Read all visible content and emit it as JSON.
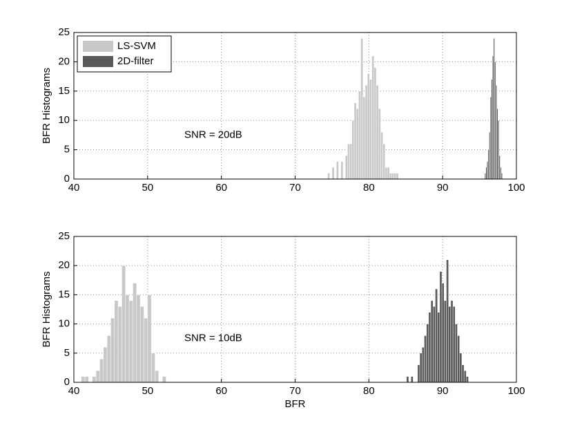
{
  "chart_data": [
    {
      "type": "histogram",
      "ylabel": "BFR Histograms",
      "annotation": "SNR = 20dB",
      "xlim": [
        40,
        100
      ],
      "xticks": [
        40,
        50,
        60,
        70,
        80,
        90,
        100
      ],
      "ylim": [
        0,
        25
      ],
      "yticks": [
        0,
        5,
        10,
        15,
        20,
        25
      ],
      "grid": true,
      "legend": "upper left",
      "series": [
        {
          "name": "LS-SVM",
          "color": "#c8c8c8",
          "bins": [
            74.4,
            74.7,
            75.0,
            75.3,
            75.6,
            75.9,
            76.2,
            76.5,
            76.8,
            77.1,
            77.4,
            77.7,
            78.0,
            78.3,
            78.6,
            78.9,
            79.2,
            79.5,
            79.8,
            80.1,
            80.4,
            80.7,
            81.0,
            81.3,
            81.6,
            81.9,
            82.2,
            82.5,
            82.8,
            83.1,
            83.4,
            83.7,
            84.0
          ],
          "values": [
            1,
            0,
            2,
            0,
            3,
            0,
            3,
            0,
            4,
            6,
            6,
            10,
            13,
            12,
            15,
            24,
            14,
            16,
            18,
            17,
            21,
            19,
            16,
            12,
            8,
            6,
            2,
            2,
            1,
            1,
            1,
            1
          ]
        },
        {
          "name": "2D-filter",
          "color": "#595959",
          "bins": [
            95.7,
            95.85,
            96.0,
            96.15,
            96.3,
            96.45,
            96.6,
            96.75,
            96.9,
            97.05,
            97.2,
            97.35,
            97.5,
            97.65,
            97.8,
            97.95,
            98.1
          ],
          "values": [
            1,
            2,
            3,
            5,
            8,
            14,
            17,
            21,
            24,
            20,
            16,
            12,
            10,
            4,
            2,
            1
          ]
        }
      ]
    },
    {
      "type": "histogram",
      "ylabel": "BFR Histograms",
      "xlabel": "BFR",
      "annotation": "SNR = 10dB",
      "xlim": [
        40,
        100
      ],
      "xticks": [
        40,
        50,
        60,
        70,
        80,
        90,
        100
      ],
      "ylim": [
        0,
        25
      ],
      "yticks": [
        0,
        5,
        10,
        15,
        20,
        25
      ],
      "grid": true,
      "series": [
        {
          "color": "#c8c8c8",
          "bins": [
            41.0,
            41.5,
            42.0,
            42.5,
            43.0,
            43.5,
            44.0,
            44.5,
            45.0,
            45.5,
            46.0,
            46.5,
            47.0,
            47.5,
            48.0,
            48.5,
            49.0,
            49.5,
            50.0,
            50.5,
            51.0,
            51.5,
            52.0,
            52.5
          ],
          "values": [
            1,
            1,
            0,
            1,
            2,
            4,
            6,
            8,
            11,
            14,
            13,
            20,
            15,
            14,
            17,
            15,
            13,
            11,
            15,
            5,
            2,
            0,
            1
          ]
        },
        {
          "color": "#595959",
          "bins": [
            85.1,
            85.4,
            85.7,
            86.0,
            86.3,
            86.6,
            86.9,
            87.2,
            87.5,
            87.8,
            88.1,
            88.4,
            88.7,
            89.0,
            89.3,
            89.6,
            89.9,
            90.2,
            90.5,
            90.8,
            91.1,
            91.4,
            91.7,
            92.0,
            92.3,
            92.6,
            92.9,
            93.2,
            93.5
          ],
          "values": [
            1,
            0,
            1,
            0,
            0,
            3,
            5,
            6,
            8,
            10,
            12,
            14,
            13,
            16,
            12,
            19,
            17,
            14,
            21,
            13,
            14,
            13,
            10,
            8,
            5,
            3,
            2,
            1
          ]
        }
      ]
    }
  ]
}
